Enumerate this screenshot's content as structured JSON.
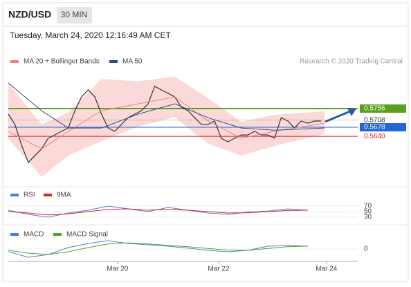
{
  "header": {
    "symbol": "NZD/USD",
    "timeframe": "30 MIN",
    "timestamp": "Tuesday, March 24, 2020 12:16:49 AM CET"
  },
  "chart_data": [
    {
      "type": "line",
      "annotation": "Research © 2020 Trading Central",
      "x": [
        0,
        1,
        2,
        3,
        4,
        5,
        6,
        7,
        8,
        9,
        10,
        11,
        12,
        13,
        14,
        15,
        16,
        17,
        18,
        19,
        20,
        21,
        22,
        23,
        24,
        25,
        26,
        27,
        28,
        29,
        30,
        31,
        32,
        33,
        34,
        35,
        36,
        37,
        38,
        39,
        40,
        41,
        42,
        43,
        44,
        45,
        46,
        47
      ],
      "values": [
        0.5733,
        0.569,
        0.5603,
        0.5531,
        0.556,
        0.5588,
        0.5632,
        0.5646,
        0.5661,
        0.5675,
        0.5747,
        0.5805,
        0.5834,
        0.5805,
        0.5733,
        0.5675,
        0.5661,
        0.569,
        0.5718,
        0.5733,
        0.5747,
        0.5776,
        0.5849,
        0.5834,
        0.582,
        0.5805,
        0.5762,
        0.5747,
        0.5718,
        0.569,
        0.569,
        0.5704,
        0.5632,
        0.5617,
        0.5632,
        0.5646,
        0.5646,
        0.5661,
        0.5646,
        0.5646,
        0.5632,
        0.5718,
        0.5704,
        0.5675,
        0.5704,
        0.5695,
        0.5704,
        0.5704
      ],
      "color": "#333333",
      "xlim": [
        0,
        52.5
      ],
      "ylim": [
        0.5444,
        0.5993
      ],
      "series": [
        {
          "name": "MA 20 + Bollinger Bands",
          "color": "#f08080",
          "band_color": "#fcd9d9",
          "x": [
            0,
            5,
            9,
            14,
            19.5,
            25,
            30,
            35,
            40,
            47.5
          ],
          "values": [
            0.5661,
            0.5588,
            0.5661,
            0.5747,
            0.5776,
            0.5805,
            0.5704,
            0.5632,
            0.5661,
            0.5695
          ],
          "upper": [
            0.5863,
            0.569,
            0.574,
            0.588,
            0.587,
            0.589,
            0.58,
            0.57,
            0.573,
            0.5745
          ],
          "lower": [
            0.563,
            0.547,
            0.556,
            0.562,
            0.568,
            0.572,
            0.561,
            0.556,
            0.56,
            0.565
          ]
        },
        {
          "name": "MA 50",
          "color": "#2c4f8c",
          "x": [
            0,
            5,
            9,
            14,
            19.5,
            25,
            30,
            35,
            40,
            47.5
          ],
          "values": [
            0.5863,
            0.5747,
            0.5675,
            0.5675,
            0.5733,
            0.5776,
            0.5718,
            0.5675,
            0.5666,
            0.5675
          ]
        }
      ],
      "levels": [
        {
          "value": 0.5756,
          "color": "#5aa01e"
        },
        {
          "value": 0.5708,
          "color": "#999999"
        },
        {
          "value": 0.5678,
          "color": "#2266dd"
        },
        {
          "value": 0.564,
          "label": "0.5640",
          "color": "#e02020"
        }
      ]
    },
    {
      "type": "line",
      "xlim": [
        0,
        52.5
      ],
      "ylim": [
        0,
        100
      ],
      "yticks": [
        70,
        50,
        30
      ],
      "series": [
        {
          "name": "RSI",
          "color": "#4a7fd8",
          "x": [
            0,
            3,
            6,
            9,
            12,
            15,
            18,
            21,
            24,
            27,
            30,
            33,
            36,
            39,
            42,
            45
          ],
          "values": [
            55,
            40,
            30,
            45,
            55,
            70,
            60,
            50,
            65,
            55,
            45,
            40,
            48,
            52,
            60,
            55
          ]
        },
        {
          "name": "9MA",
          "color": "#e02020",
          "x": [
            0,
            3,
            6,
            9,
            12,
            15,
            18,
            21,
            24,
            27,
            30,
            33,
            36,
            39,
            42,
            45
          ],
          "values": [
            50,
            45,
            38,
            42,
            50,
            58,
            60,
            55,
            58,
            55,
            50,
            45,
            46,
            50,
            54,
            55
          ]
        }
      ]
    },
    {
      "type": "line",
      "xlim": [
        0,
        52.5
      ],
      "ylim": [
        -0.0045,
        0.0075
      ],
      "yticks": [
        0
      ],
      "xticks": [
        {
          "value": 16.4,
          "label": "Mar 20"
        },
        {
          "value": 31.6,
          "label": "Mar 22"
        },
        {
          "value": 47.8,
          "label": "Mar 24"
        }
      ],
      "series": [
        {
          "name": "MACD",
          "color": "#4a7fd8",
          "x": [
            0,
            3,
            6,
            9,
            12,
            15,
            18,
            21,
            24,
            27,
            30,
            33,
            36,
            39,
            42,
            45
          ],
          "values": [
            -0.001,
            -0.003,
            -0.002,
            0.0005,
            0.002,
            0.003,
            0.002,
            0.0015,
            0.001,
            0.0003,
            -0.0005,
            -0.001,
            -0.0005,
            0.001,
            0.0012,
            0.001
          ]
        },
        {
          "name": "MACD Signal",
          "color": "#5aa01e",
          "x": [
            0,
            3,
            6,
            9,
            12,
            15,
            18,
            21,
            24,
            27,
            30,
            33,
            36,
            39,
            42,
            45
          ],
          "values": [
            -0.0005,
            -0.0015,
            -0.002,
            -0.001,
            0.0005,
            0.0018,
            0.0022,
            0.0018,
            0.0013,
            0.0008,
            0.0002,
            -0.0004,
            -0.0005,
            0.0002,
            0.0008,
            0.001
          ]
        }
      ]
    }
  ]
}
